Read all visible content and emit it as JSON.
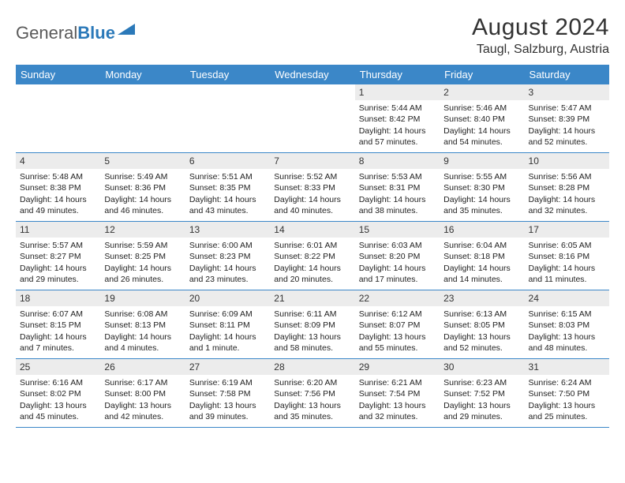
{
  "brand": {
    "part1": "General",
    "part2": "Blue"
  },
  "title": "August 2024",
  "location": "Taugl, Salzburg, Austria",
  "header_bg": "#3b87c8",
  "day_bg": "#ececec",
  "border_color": "#3b87c8",
  "weekdays": [
    "Sunday",
    "Monday",
    "Tuesday",
    "Wednesday",
    "Thursday",
    "Friday",
    "Saturday"
  ],
  "weeks": [
    [
      null,
      null,
      null,
      null,
      {
        "n": "1",
        "sr": "5:44 AM",
        "ss": "8:42 PM",
        "dl": "14 hours and 57 minutes."
      },
      {
        "n": "2",
        "sr": "5:46 AM",
        "ss": "8:40 PM",
        "dl": "14 hours and 54 minutes."
      },
      {
        "n": "3",
        "sr": "5:47 AM",
        "ss": "8:39 PM",
        "dl": "14 hours and 52 minutes."
      }
    ],
    [
      {
        "n": "4",
        "sr": "5:48 AM",
        "ss": "8:38 PM",
        "dl": "14 hours and 49 minutes."
      },
      {
        "n": "5",
        "sr": "5:49 AM",
        "ss": "8:36 PM",
        "dl": "14 hours and 46 minutes."
      },
      {
        "n": "6",
        "sr": "5:51 AM",
        "ss": "8:35 PM",
        "dl": "14 hours and 43 minutes."
      },
      {
        "n": "7",
        "sr": "5:52 AM",
        "ss": "8:33 PM",
        "dl": "14 hours and 40 minutes."
      },
      {
        "n": "8",
        "sr": "5:53 AM",
        "ss": "8:31 PM",
        "dl": "14 hours and 38 minutes."
      },
      {
        "n": "9",
        "sr": "5:55 AM",
        "ss": "8:30 PM",
        "dl": "14 hours and 35 minutes."
      },
      {
        "n": "10",
        "sr": "5:56 AM",
        "ss": "8:28 PM",
        "dl": "14 hours and 32 minutes."
      }
    ],
    [
      {
        "n": "11",
        "sr": "5:57 AM",
        "ss": "8:27 PM",
        "dl": "14 hours and 29 minutes."
      },
      {
        "n": "12",
        "sr": "5:59 AM",
        "ss": "8:25 PM",
        "dl": "14 hours and 26 minutes."
      },
      {
        "n": "13",
        "sr": "6:00 AM",
        "ss": "8:23 PM",
        "dl": "14 hours and 23 minutes."
      },
      {
        "n": "14",
        "sr": "6:01 AM",
        "ss": "8:22 PM",
        "dl": "14 hours and 20 minutes."
      },
      {
        "n": "15",
        "sr": "6:03 AM",
        "ss": "8:20 PM",
        "dl": "14 hours and 17 minutes."
      },
      {
        "n": "16",
        "sr": "6:04 AM",
        "ss": "8:18 PM",
        "dl": "14 hours and 14 minutes."
      },
      {
        "n": "17",
        "sr": "6:05 AM",
        "ss": "8:16 PM",
        "dl": "14 hours and 11 minutes."
      }
    ],
    [
      {
        "n": "18",
        "sr": "6:07 AM",
        "ss": "8:15 PM",
        "dl": "14 hours and 7 minutes."
      },
      {
        "n": "19",
        "sr": "6:08 AM",
        "ss": "8:13 PM",
        "dl": "14 hours and 4 minutes."
      },
      {
        "n": "20",
        "sr": "6:09 AM",
        "ss": "8:11 PM",
        "dl": "14 hours and 1 minute."
      },
      {
        "n": "21",
        "sr": "6:11 AM",
        "ss": "8:09 PM",
        "dl": "13 hours and 58 minutes."
      },
      {
        "n": "22",
        "sr": "6:12 AM",
        "ss": "8:07 PM",
        "dl": "13 hours and 55 minutes."
      },
      {
        "n": "23",
        "sr": "6:13 AM",
        "ss": "8:05 PM",
        "dl": "13 hours and 52 minutes."
      },
      {
        "n": "24",
        "sr": "6:15 AM",
        "ss": "8:03 PM",
        "dl": "13 hours and 48 minutes."
      }
    ],
    [
      {
        "n": "25",
        "sr": "6:16 AM",
        "ss": "8:02 PM",
        "dl": "13 hours and 45 minutes."
      },
      {
        "n": "26",
        "sr": "6:17 AM",
        "ss": "8:00 PM",
        "dl": "13 hours and 42 minutes."
      },
      {
        "n": "27",
        "sr": "6:19 AM",
        "ss": "7:58 PM",
        "dl": "13 hours and 39 minutes."
      },
      {
        "n": "28",
        "sr": "6:20 AM",
        "ss": "7:56 PM",
        "dl": "13 hours and 35 minutes."
      },
      {
        "n": "29",
        "sr": "6:21 AM",
        "ss": "7:54 PM",
        "dl": "13 hours and 32 minutes."
      },
      {
        "n": "30",
        "sr": "6:23 AM",
        "ss": "7:52 PM",
        "dl": "13 hours and 29 minutes."
      },
      {
        "n": "31",
        "sr": "6:24 AM",
        "ss": "7:50 PM",
        "dl": "13 hours and 25 minutes."
      }
    ]
  ],
  "labels": {
    "sunrise": "Sunrise:",
    "sunset": "Sunset:",
    "daylight": "Daylight:"
  }
}
